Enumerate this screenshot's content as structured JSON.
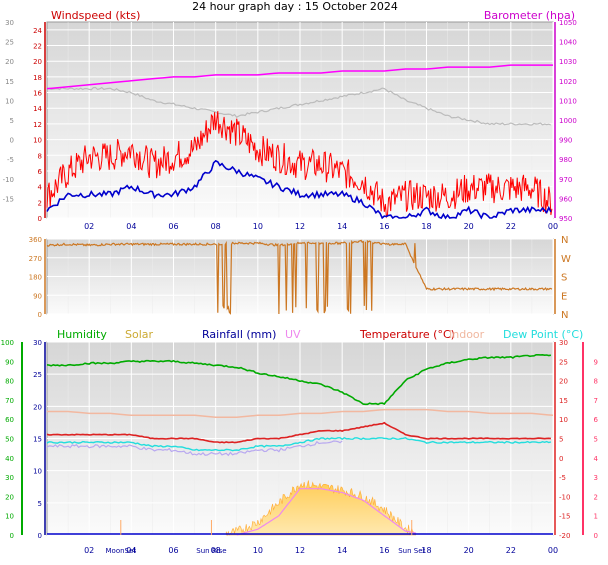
{
  "title": "24 hour graph day : 15 October 2024",
  "x_ticks": [
    "02",
    "04",
    "06",
    "08",
    "10",
    "12",
    "14",
    "16",
    "18",
    "20",
    "22",
    "00"
  ],
  "colors": {
    "wind": "#dd0000",
    "gust": "#ff0000",
    "avg": "#0000cc",
    "baro": "#ff00ff",
    "baro_axis": "#cc00cc",
    "temp_axis_left": "#888888",
    "dir": "#cc7722",
    "humidity": "#00aa00",
    "solar": "#ffb347",
    "rain": "#0000cc",
    "uv": "#ee88ee",
    "temperature": "#dd2222",
    "indoor": "#f2b8a0",
    "dewpoint": "#22dddd",
    "right_axis3": "#ff3366",
    "grey": "#bbbbbb"
  },
  "panels": {
    "wind": {
      "left_label": "Windspeed (kts)",
      "right_label": "Barometer (hpa)",
      "left_ticks": [
        "0",
        "2",
        "4",
        "6",
        "8",
        "10",
        "12",
        "14",
        "16",
        "18",
        "20",
        "22",
        "24"
      ],
      "outer_ticks": [
        "-15",
        "-10",
        "-5",
        "0",
        "5",
        "10",
        "15",
        "20",
        "25",
        "30"
      ],
      "right_ticks": [
        "950",
        "960",
        "970",
        "980",
        "990",
        "1000",
        "1010",
        "1020",
        "1030",
        "1040",
        "1050"
      ]
    },
    "direction": {
      "left_ticks": [
        "0",
        "90",
        "180",
        "270",
        "360"
      ],
      "right_labels": [
        "N",
        "E",
        "S",
        "W",
        "N"
      ]
    },
    "bottom": {
      "legend": [
        "Humidity",
        "Solar",
        "Rainfall (mm)",
        "UV",
        "Temperature (°C)",
        "Indoor",
        "Dew Point (°C)"
      ],
      "humidity_ticks": [
        "0",
        "10",
        "20",
        "30",
        "40",
        "50",
        "60",
        "70",
        "80",
        "90",
        "100"
      ],
      "rain_ticks": [
        "0",
        "5",
        "10",
        "15",
        "20",
        "25",
        "30"
      ],
      "right_ticks": [
        "-20",
        "-15",
        "-10",
        "-5",
        "0",
        "5",
        "10",
        "15",
        "20",
        "25",
        "30"
      ],
      "uv_ticks": [
        "0",
        "1",
        "2",
        "3",
        "4",
        "5",
        "6",
        "7",
        "8",
        "9"
      ],
      "event_labels": [
        "MoonSet",
        "Sun Rise",
        "Sun Set"
      ]
    }
  },
  "chart_data": [
    {
      "type": "line",
      "title": "24 hour graph day : 15 October 2024",
      "x_hours": [
        0,
        1,
        2,
        3,
        4,
        5,
        6,
        7,
        8,
        9,
        10,
        11,
        12,
        13,
        14,
        15,
        16,
        17,
        18,
        19,
        20,
        21,
        22,
        23,
        24
      ],
      "series": [
        {
          "name": "Windspeed (kts)",
          "y": [
            2,
            5,
            7,
            7,
            8,
            6,
            7,
            8,
            12,
            10,
            8,
            7,
            6,
            6,
            5,
            4,
            1,
            2,
            2,
            2,
            3,
            3,
            3,
            3,
            1
          ]
        },
        {
          "name": "Barometer (hpa)",
          "y": [
            1016,
            1017,
            1018,
            1019,
            1020,
            1021,
            1022,
            1022,
            1023,
            1023,
            1023,
            1024,
            1024,
            1024,
            1025,
            1025,
            1025,
            1026,
            1026,
            1027,
            1027,
            1027,
            1028,
            1028,
            1028
          ]
        }
      ],
      "avg_wind": [
        1,
        3,
        3,
        3,
        4,
        3,
        3,
        4,
        7,
        6,
        5,
        4,
        3,
        3,
        3,
        2,
        0,
        0,
        1,
        0,
        1,
        0,
        1,
        1,
        1
      ],
      "temp_grey": [
        13,
        13,
        13,
        13,
        12,
        10,
        9,
        8,
        7,
        6,
        7,
        8,
        9,
        10,
        11,
        12,
        13,
        10,
        8,
        6,
        5,
        4,
        4,
        4,
        4
      ],
      "ylim_left": [
        0,
        25
      ],
      "ylim_right": [
        950,
        1050
      ]
    },
    {
      "type": "line",
      "title": "",
      "ylabel": "",
      "x_hours": [
        0,
        1,
        2,
        3,
        4,
        5,
        6,
        7,
        8,
        9,
        10,
        11,
        12,
        13,
        14,
        15,
        16,
        17,
        18,
        19,
        20,
        21,
        22,
        23,
        24
      ],
      "series": [
        {
          "name": "",
          "y": [
            330,
            335,
            330,
            335,
            335,
            335,
            335,
            335,
            335,
            340,
            340,
            330,
            340,
            340,
            340,
            350,
            335,
            335,
            120,
            120,
            120,
            120,
            120,
            120,
            120
          ]
        }
      ],
      "ylim": [
        0,
        360
      ]
    },
    {
      "type": "line",
      "title": "",
      "x_hours": [
        0,
        1,
        2,
        3,
        4,
        5,
        6,
        7,
        8,
        9,
        10,
        11,
        12,
        13,
        14,
        15,
        16,
        17,
        18,
        19,
        20,
        21,
        22,
        23,
        24
      ],
      "series": [
        {
          "name": "Humidity",
          "y": [
            88,
            88,
            89,
            89,
            90,
            90,
            90,
            89,
            88,
            87,
            84,
            82,
            80,
            78,
            74,
            68,
            68,
            80,
            86,
            89,
            91,
            92,
            92,
            93,
            93
          ]
        },
        {
          "name": "Temperature (°C)",
          "y": [
            6,
            6,
            6,
            6,
            6,
            5,
            5,
            5,
            4,
            4,
            5,
            5,
            6,
            7,
            7,
            8,
            9,
            6,
            5,
            5,
            5,
            5,
            5,
            5,
            5
          ]
        },
        {
          "name": "Dew Point (°C)",
          "y": [
            4,
            4,
            4,
            4,
            4,
            3,
            3,
            2,
            2,
            2,
            3,
            3,
            4,
            5,
            5,
            5,
            5,
            5,
            4,
            4,
            4,
            4,
            4,
            4,
            4
          ]
        },
        {
          "name": "Indoor",
          "y": [
            12,
            12,
            11.5,
            11.5,
            11,
            11,
            11,
            11,
            10.5,
            10.5,
            11,
            11,
            11.5,
            11.5,
            12,
            12,
            12.5,
            12.5,
            12.5,
            12,
            12,
            11.5,
            11.5,
            11.5,
            11
          ]
        },
        {
          "name": "Solar",
          "y": [
            0,
            0,
            0,
            0,
            0,
            0,
            0,
            0,
            0,
            0.5,
            2,
            5,
            8,
            7.5,
            7,
            6,
            4,
            1,
            0,
            0,
            0,
            0,
            0,
            0,
            0
          ]
        },
        {
          "name": "UV",
          "y": [
            0,
            0,
            0,
            0,
            0,
            0,
            0,
            0,
            0,
            0,
            0.3,
            1,
            2.4,
            2.4,
            2.2,
            1.8,
            1,
            0.2,
            0,
            0,
            0,
            0,
            0,
            0,
            0
          ]
        },
        {
          "name": "Rainfall (mm)",
          "y": [
            0,
            0,
            0,
            0,
            0,
            0,
            0,
            0,
            0,
            0,
            0,
            0,
            0,
            0,
            0,
            0,
            0,
            0,
            0,
            0,
            0,
            0,
            0,
            0,
            0
          ]
        }
      ],
      "ylim_humidity": [
        0,
        100
      ],
      "ylim_temp": [
        -20,
        30
      ]
    }
  ]
}
